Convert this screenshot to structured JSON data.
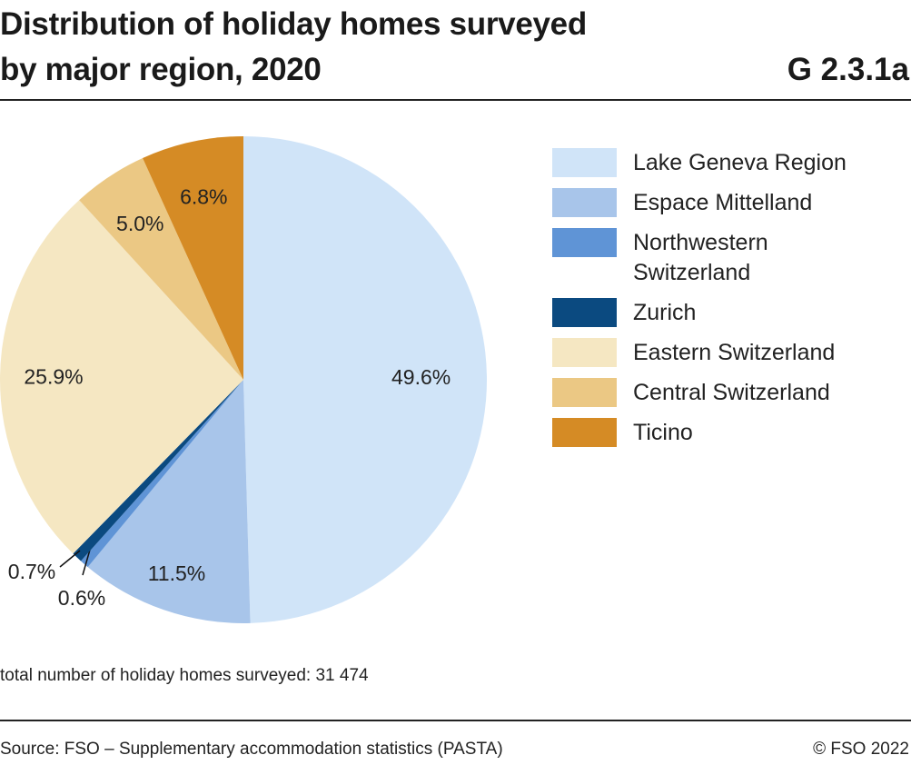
{
  "header": {
    "title_line1": "Distribution of holiday homes surveyed",
    "title_line2": "by major region, 2020",
    "code": "G 2.3.1a"
  },
  "chart_data": {
    "type": "pie",
    "title": "Distribution of holiday homes surveyed by major region, 2020",
    "categories": [
      "Lake Geneva Region",
      "Espace Mittelland",
      "Northwestern Switzerland",
      "Zurich",
      "Eastern Switzerland",
      "Central Switzerland",
      "Ticino"
    ],
    "values": [
      49.6,
      11.5,
      0.6,
      0.7,
      25.9,
      5.0,
      6.8
    ],
    "labels": [
      "49.6%",
      "11.5%",
      "0.6%",
      "0.7%",
      "25.9%",
      "5.0%",
      "6.8%"
    ],
    "colors": [
      "#d0e4f8",
      "#a8c5ea",
      "#5f94d6",
      "#0b4a80",
      "#f5e7c2",
      "#ebc884",
      "#d58b25"
    ],
    "legend_position": "right"
  },
  "note": "total number of holiday homes surveyed: 31 474",
  "footer": {
    "source": "Source: FSO – Supplementary accommodation statistics (PASTA)",
    "copyright": "© FSO 2022"
  }
}
